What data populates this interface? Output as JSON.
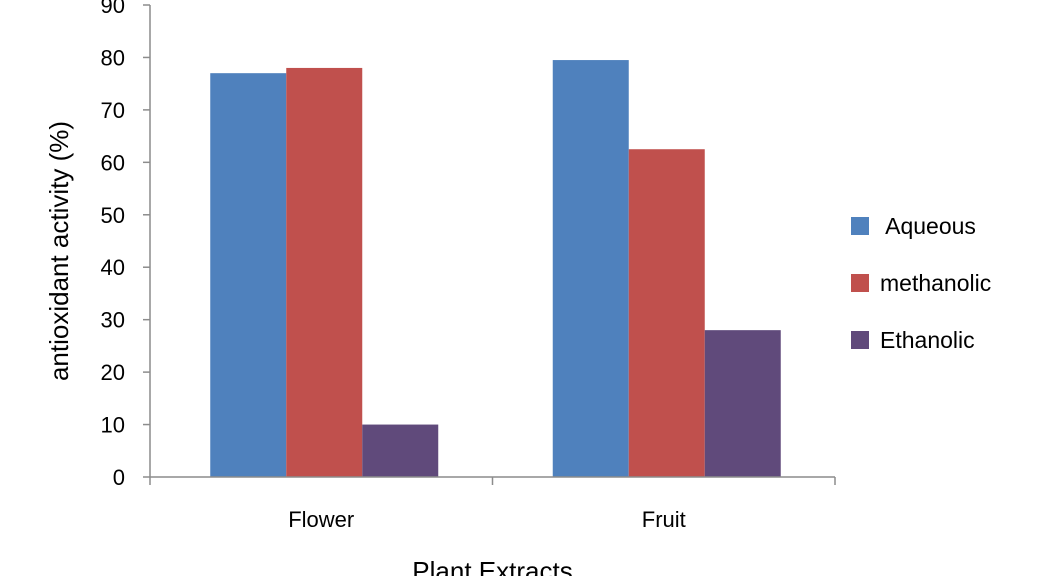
{
  "chart_data": {
    "type": "bar",
    "categories": [
      "Flower",
      "Fruit"
    ],
    "series": [
      {
        "name": " Aqueous",
        "values": [
          77,
          79.5
        ],
        "color": "#4F81BD"
      },
      {
        "name": "methanolic",
        "values": [
          78,
          62.5
        ],
        "color": "#C0504D"
      },
      {
        "name": "Ethanolic",
        "values": [
          10,
          28
        ],
        "color": "#604A7B"
      }
    ],
    "xlabel": "Plant Extracts",
    "ylabel": "antioxidant activity (%)",
    "ylim": [
      0,
      90
    ],
    "yticks": [
      0,
      10,
      20,
      30,
      40,
      50,
      60,
      70,
      80,
      90
    ],
    "grid": false,
    "legend_position": "right"
  }
}
